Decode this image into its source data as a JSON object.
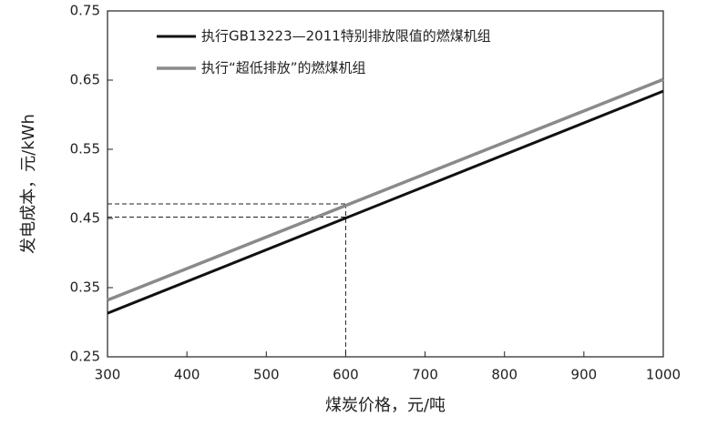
{
  "chart_data": {
    "type": "line",
    "x_label": "煤炭价格，元/吨",
    "y_label": "发电成本，元/kWh",
    "x": [
      300,
      1000
    ],
    "series": [
      {
        "name": "执行GB13223—2011特别排放限值的燃煤机组",
        "color": "#111111",
        "values": [
          0.313,
          0.634
        ]
      },
      {
        "name": "执行“超低排放”的燃煤机组",
        "color": "#8a8a8a",
        "values": [
          0.332,
          0.651
        ]
      }
    ],
    "reference_lines": {
      "x": 600,
      "y": [
        0.452,
        0.471
      ]
    },
    "xlim": [
      300,
      1000
    ],
    "xticks": [
      300,
      400,
      500,
      600,
      700,
      800,
      900,
      1000
    ],
    "ylim": [
      0.25,
      0.75
    ],
    "yticks": [
      0.25,
      0.35,
      0.45,
      0.55,
      0.65,
      0.75
    ],
    "legend": "upper left"
  }
}
